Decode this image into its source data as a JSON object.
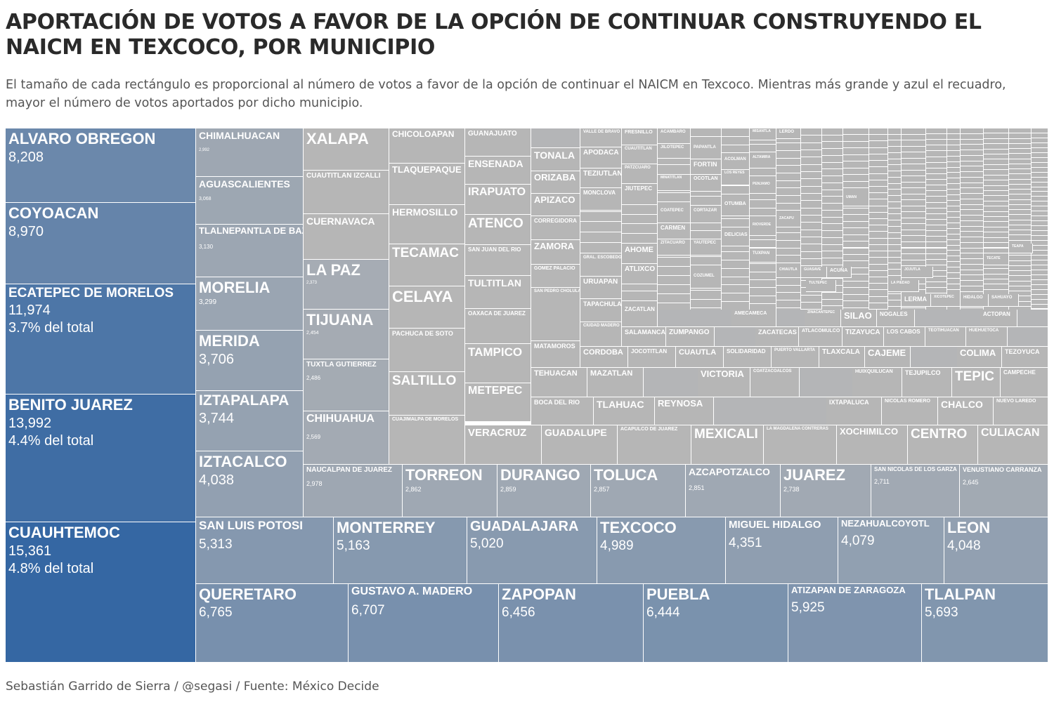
{
  "title": "APORTACIÓN DE VOTOS A FAVOR DE LA OPCIÓN DE CONTINUAR CONSTRUYENDO EL NAICM EN TEXCOCO, POR MUNICIPIO",
  "subtitle": "El tamaño de cada rectángulo es proporcional al número de votos a favor de la opción de continuar el NAICM en Texcoco. Mientras más grande y azul el recuadro, mayor el número de votos aportados por dicho municipio.",
  "footer": "Sebastián Garrido de Sierra / @segasi / Fuente: México Decide",
  "colors": {
    "max": "#3567a3",
    "min": "#b6b6b6",
    "border": "#ffffff",
    "text": "#ffffff"
  },
  "chart_data": {
    "type": "treemap",
    "title": "APORTACIÓN DE VOTOS A FAVOR DE LA OPCIÓN DE CONTINUAR CONSTRUYENDO EL NAICM EN TEXCOCO, POR MUNICIPIO",
    "value_label": "",
    "items": [
      {
        "name": "CUAUHTEMOC",
        "value": 15361,
        "share": "4.8% del total"
      },
      {
        "name": "BENITO JUAREZ",
        "value": 13992,
        "share": "4.4% del total"
      },
      {
        "name": "ECATEPEC DE MORELOS",
        "value": 11974,
        "share": "3.7% del total"
      },
      {
        "name": "COYOACAN",
        "value": 8970
      },
      {
        "name": "ALVARO OBREGON",
        "value": 8208
      },
      {
        "name": "QUERETARO",
        "value": 6765
      },
      {
        "name": "GUSTAVO A. MADERO",
        "value": 6707
      },
      {
        "name": "ZAPOPAN",
        "value": 6456
      },
      {
        "name": "PUEBLA",
        "value": 6444
      },
      {
        "name": "ATIZAPAN DE ZARAGOZA",
        "value": 5925
      },
      {
        "name": "TLALPAN",
        "value": 5693
      },
      {
        "name": "SAN LUIS POTOSI",
        "value": 5313
      },
      {
        "name": "MONTERREY",
        "value": 5163
      },
      {
        "name": "GUADALAJARA",
        "value": 5020
      },
      {
        "name": "TEXCOCO",
        "value": 4989
      },
      {
        "name": "MIGUEL HIDALGO",
        "value": 4351
      },
      {
        "name": "NEZAHUALCOYOTL",
        "value": 4079
      },
      {
        "name": "LEON",
        "value": 4048
      },
      {
        "name": "IZTACALCO",
        "value": 4038
      },
      {
        "name": "IZTAPALAPA",
        "value": 3744
      },
      {
        "name": "MERIDA",
        "value": 3706
      },
      {
        "name": "MORELIA",
        "value": 3299
      },
      {
        "name": "TLALNEPANTLA DE BAZ",
        "value": 3130
      },
      {
        "name": "AGUASCALIENTES",
        "value": 3068
      },
      {
        "name": "NAUCALPAN DE JUAREZ",
        "value": 2978
      },
      {
        "name": "CHIMALHUACAN",
        "value": 2992
      },
      {
        "name": "TORREON",
        "value": 2862
      },
      {
        "name": "DURANGO",
        "value": 2859
      },
      {
        "name": "TOLUCA",
        "value": 2857
      },
      {
        "name": "AZCAPOTZALCO",
        "value": 2851
      },
      {
        "name": "JUAREZ",
        "value": 2738
      },
      {
        "name": "SAN NICOLAS DE LOS GARZA",
        "value": 2711
      },
      {
        "name": "VENUSTIANO CARRANZA",
        "value": 2645
      },
      {
        "name": "CHIHUAHUA",
        "value": 2569
      },
      {
        "name": "TUXTLA GUTIERREZ",
        "value": 2486
      },
      {
        "name": "TIJUANA",
        "value": 2454
      },
      {
        "name": "LA PAZ",
        "value": 2373
      },
      {
        "name": "CUERNAVACA"
      },
      {
        "name": "CUAUTITLAN IZCALLI"
      },
      {
        "name": "XALAPA"
      },
      {
        "name": "CHICOLOAPAN"
      },
      {
        "name": "TLAQUEPAQUE"
      },
      {
        "name": "HERMOSILLO"
      },
      {
        "name": "TECAMAC"
      },
      {
        "name": "CELAYA"
      },
      {
        "name": "PACHUCA DE SOTO"
      },
      {
        "name": "SALTILLO"
      },
      {
        "name": "CUAJIMALPA DE MORELOS"
      },
      {
        "name": "GUANAJUATO"
      },
      {
        "name": "ENSENADA"
      },
      {
        "name": "IRAPUATO"
      },
      {
        "name": "ATENCO"
      },
      {
        "name": "SAN JUAN DEL RIO"
      },
      {
        "name": "TULTITLAN"
      },
      {
        "name": "OAXACA DE JUAREZ"
      },
      {
        "name": "TAMPICO"
      },
      {
        "name": "METEPEC"
      },
      {
        "name": "TONALA"
      },
      {
        "name": "ORIZABA"
      },
      {
        "name": "APIZACO"
      },
      {
        "name": "CORREGIDORA"
      },
      {
        "name": "ZAMORA"
      },
      {
        "name": "GOMEZ PALACIO"
      },
      {
        "name": "SAN PEDRO CHOLULA"
      },
      {
        "name": "MATAMOROS"
      },
      {
        "name": "VALLE DE BRAVO"
      },
      {
        "name": "APODACA"
      },
      {
        "name": "TEZIUTLAN"
      },
      {
        "name": "MONCLOVA"
      },
      {
        "name": "GRAL. ESCOBEDO"
      },
      {
        "name": "URUAPAN"
      },
      {
        "name": "TAPACHULA"
      },
      {
        "name": "CIUDAD MADERO"
      },
      {
        "name": "FRESNILLO"
      },
      {
        "name": "CUAUTITLAN"
      },
      {
        "name": "PATZCUARO"
      },
      {
        "name": "JIUTEPEC"
      },
      {
        "name": "AHOME"
      },
      {
        "name": "ATLIXCO"
      },
      {
        "name": "ZACATLAN"
      },
      {
        "name": "ACAMBARO"
      },
      {
        "name": "JILOTEPEC"
      },
      {
        "name": "MINATITLAN"
      },
      {
        "name": "COATEPEC"
      },
      {
        "name": "CARMEN"
      },
      {
        "name": "ZITACUARO"
      },
      {
        "name": "PAPANTLA"
      },
      {
        "name": "FORTIN"
      },
      {
        "name": "OCOTLAN"
      },
      {
        "name": "CORTAZAR"
      },
      {
        "name": "YAUTEPEC"
      },
      {
        "name": "COZUMEL"
      },
      {
        "name": "ACOLMAN"
      },
      {
        "name": "LOS REYES"
      },
      {
        "name": "OTUMBA"
      },
      {
        "name": "DELICIAS"
      },
      {
        "name": "MISANTLA"
      },
      {
        "name": "ALTAMIRA"
      },
      {
        "name": "PENJAMO"
      },
      {
        "name": "RIOVERDE"
      },
      {
        "name": "TUXPAN"
      },
      {
        "name": "LERDO"
      },
      {
        "name": "ZACAPU"
      },
      {
        "name": "UMAN"
      },
      {
        "name": "CHIAUTLA"
      },
      {
        "name": "GUASAVE"
      },
      {
        "name": "ACUÑA"
      },
      {
        "name": "JOJUTLA"
      },
      {
        "name": "TULTEPEC"
      },
      {
        "name": "LA PIEDAD"
      },
      {
        "name": "LERMA"
      },
      {
        "name": "XICOTEPEC"
      },
      {
        "name": "HIDALGO"
      },
      {
        "name": "SAHUAYO"
      },
      {
        "name": "TEAPA"
      },
      {
        "name": "TECATE"
      },
      {
        "name": "AMECAMECA"
      },
      {
        "name": "ZINACANTEPEC"
      },
      {
        "name": "SILAO"
      },
      {
        "name": "NOGALES"
      },
      {
        "name": "ACTOPAN"
      },
      {
        "name": "SALAMANCA"
      },
      {
        "name": "ZUMPANGO"
      },
      {
        "name": "ZACATECAS"
      },
      {
        "name": "ATLACOMULCO"
      },
      {
        "name": "TIZAYUCA"
      },
      {
        "name": "LOS CABOS"
      },
      {
        "name": "TEOTIHUACAN"
      },
      {
        "name": "HUEHUETOCA"
      },
      {
        "name": "CORDOBA"
      },
      {
        "name": "JOCOTITLAN"
      },
      {
        "name": "CUAUTLA"
      },
      {
        "name": "SOLIDARIDAD"
      },
      {
        "name": "PUERTO VALLARTA"
      },
      {
        "name": "TLAXCALA"
      },
      {
        "name": "CAJEME"
      },
      {
        "name": "COLIMA"
      },
      {
        "name": "TEZOYUCA"
      },
      {
        "name": "TEHUACAN"
      },
      {
        "name": "MAZATLAN"
      },
      {
        "name": "VICTORIA"
      },
      {
        "name": "COATZACOALCOS"
      },
      {
        "name": "HUIXQUILUCAN"
      },
      {
        "name": "TEJUPILCO"
      },
      {
        "name": "TEPIC"
      },
      {
        "name": "CAMPECHE"
      },
      {
        "name": "BOCA DEL RIO"
      },
      {
        "name": "TLAHUAC"
      },
      {
        "name": "REYNOSA"
      },
      {
        "name": "IXTAPALUCA"
      },
      {
        "name": "NICOLAS ROMERO"
      },
      {
        "name": "CHALCO"
      },
      {
        "name": "NUEVO LAREDO"
      },
      {
        "name": "VERACRUZ"
      },
      {
        "name": "GUADALUPE"
      },
      {
        "name": "ACAPULCO DE JUAREZ"
      },
      {
        "name": "MEXICALI"
      },
      {
        "name": "LA MAGDALENA CONTRERAS"
      },
      {
        "name": "XOCHIMILCO"
      },
      {
        "name": "CENTRO"
      },
      {
        "name": "CULIACAN"
      }
    ]
  }
}
